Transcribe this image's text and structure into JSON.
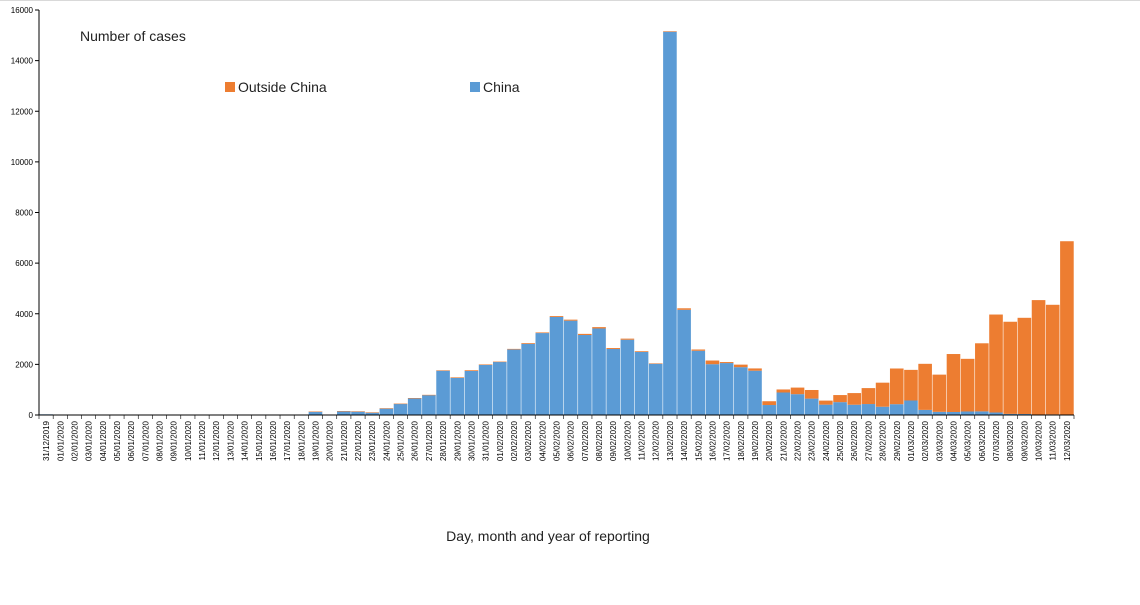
{
  "chart_data": {
    "type": "bar",
    "stacked": true,
    "title": "",
    "ylabel": "Number of cases",
    "xlabel": "Day, month and year of reporting",
    "ylim": [
      0,
      16000
    ],
    "yticks": [
      0,
      2000,
      4000,
      6000,
      8000,
      10000,
      12000,
      14000,
      16000
    ],
    "legend_placement": "top",
    "grid": false,
    "categories": [
      "31/12/2019",
      "01/01/2020",
      "02/01/2020",
      "03/01/2020",
      "04/01/2020",
      "05/01/2020",
      "06/01/2020",
      "07/01/2020",
      "08/01/2020",
      "09/01/2020",
      "10/01/2020",
      "11/01/2020",
      "12/01/2020",
      "13/01/2020",
      "14/01/2020",
      "15/01/2020",
      "16/01/2020",
      "17/01/2020",
      "18/01/2020",
      "19/01/2020",
      "20/01/2020",
      "21/01/2020",
      "22/01/2020",
      "23/01/2020",
      "24/01/2020",
      "25/01/2020",
      "26/01/2020",
      "27/01/2020",
      "28/01/2020",
      "29/01/2020",
      "30/01/2020",
      "31/01/2020",
      "01/02/2020",
      "02/02/2020",
      "03/02/2020",
      "04/02/2020",
      "05/02/2020",
      "06/02/2020",
      "07/02/2020",
      "08/02/2020",
      "09/02/2020",
      "10/02/2020",
      "11/02/2020",
      "12/02/2020",
      "13/02/2020",
      "14/02/2020",
      "15/02/2020",
      "16/02/2020",
      "17/02/2020",
      "18/02/2020",
      "19/02/2020",
      "20/02/2020",
      "21/02/2020",
      "22/02/2020",
      "23/02/2020",
      "24/02/2020",
      "25/02/2020",
      "26/02/2020",
      "27/02/2020",
      "28/02/2020",
      "29/02/2020",
      "01/03/2020",
      "02/03/2020",
      "03/03/2020",
      "04/03/2020",
      "05/03/2020",
      "06/03/2020",
      "07/03/2020",
      "08/03/2020",
      "09/03/2020",
      "10/03/2020",
      "11/03/2020",
      "12/03/2020"
    ],
    "series": [
      {
        "name": "China",
        "color": "#5B9BD5",
        "values": [
          27,
          0,
          0,
          17,
          0,
          15,
          0,
          0,
          0,
          0,
          0,
          0,
          0,
          0,
          0,
          0,
          4,
          17,
          0,
          136,
          19,
          151,
          140,
          97,
          259,
          441,
          665,
          787,
          1753,
          1466,
          1740,
          1980,
          2095,
          2590,
          2812,
          3237,
          3872,
          3727,
          3160,
          3418,
          2607,
          2974,
          2490,
          2028,
          15141,
          4156,
          2538,
          2007,
          2052,
          1890,
          1750,
          394,
          889,
          823,
          648,
          409,
          508,
          406,
          433,
          327,
          427,
          573,
          202,
          125,
          119,
          139,
          143,
          99,
          44,
          40,
          19,
          24,
          15
        ]
      },
      {
        "name": "Outside China",
        "color": "#ED7D31",
        "values": [
          0,
          0,
          0,
          0,
          0,
          0,
          0,
          0,
          0,
          0,
          0,
          0,
          0,
          1,
          0,
          1,
          0,
          0,
          0,
          1,
          1,
          3,
          4,
          8,
          7,
          9,
          5,
          10,
          12,
          24,
          29,
          21,
          15,
          22,
          30,
          25,
          35,
          40,
          45,
          54,
          38,
          43,
          30,
          12,
          22,
          60,
          50,
          145,
          40,
          100,
          90,
          150,
          120,
          260,
          340,
          160,
          280,
          460,
          630,
          950,
          1410,
          1210,
          1820,
          1470,
          2290,
          2080,
          2690,
          3870,
          3640,
          3800,
          4520,
          4330,
          6850
        ]
      }
    ]
  }
}
